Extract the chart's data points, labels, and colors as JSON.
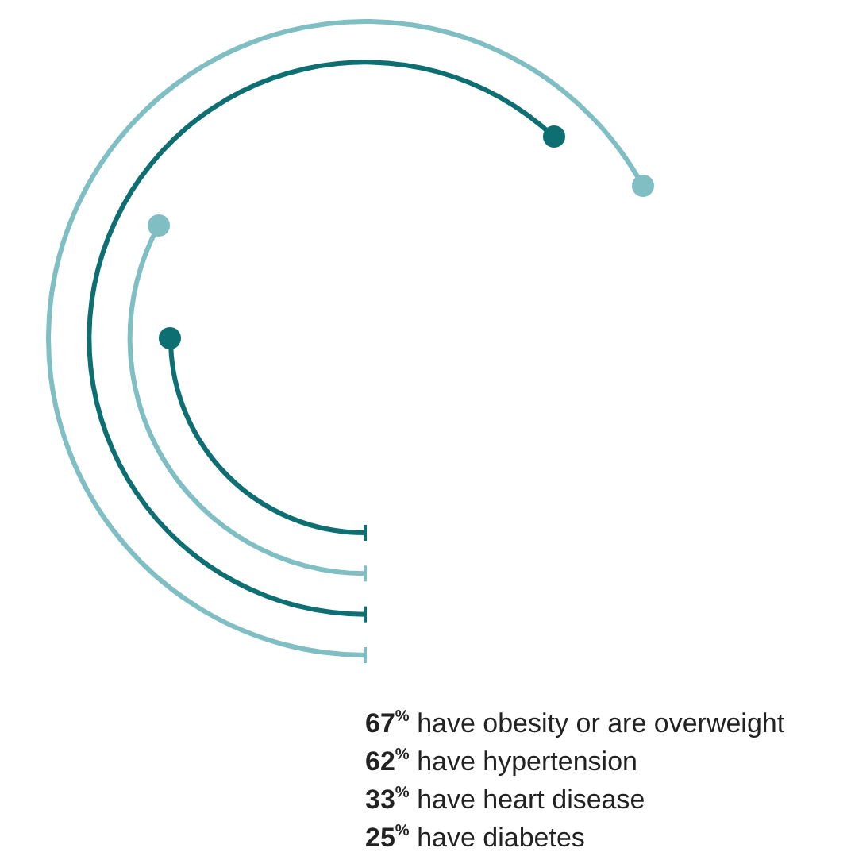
{
  "chart_data": {
    "type": "other",
    "categories": [
      "have obesity or are overweight",
      "have hypertension",
      "have heart disease",
      "have diabetes"
    ],
    "values": [
      67,
      62,
      33,
      25
    ],
    "colors": [
      "#7fbfc4",
      "#0e6f73",
      "#7fbfc4",
      "#0e6f73"
    ],
    "value_labels": [
      "67$^{%}$",
      "62$^{%}$",
      "33$^{%}$",
      "25$^{%}$"
    ]
  }
}
